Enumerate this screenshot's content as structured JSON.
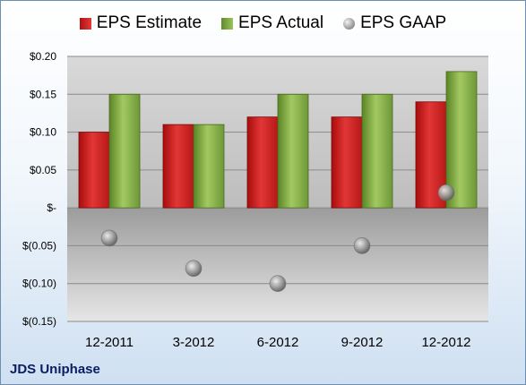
{
  "chart_data": {
    "type": "bar",
    "categories": [
      "12-2011",
      "3-2012",
      "6-2012",
      "9-2012",
      "12-2012"
    ],
    "series": [
      {
        "name": "EPS Estimate",
        "kind": "bar",
        "color": "#d42a2a",
        "values": [
          0.1,
          0.11,
          0.12,
          0.12,
          0.14
        ]
      },
      {
        "name": "EPS Actual",
        "kind": "bar",
        "color": "#86b04a",
        "values": [
          0.15,
          0.11,
          0.15,
          0.15,
          0.18
        ]
      },
      {
        "name": "EPS GAAP",
        "kind": "scatter",
        "color": "#a0a0a0",
        "values": [
          -0.04,
          -0.08,
          -0.1,
          -0.05,
          0.02
        ]
      }
    ],
    "ylim": [
      -0.15,
      0.2
    ],
    "yticks": [
      0.2,
      0.15,
      0.1,
      0.05,
      0,
      -0.05,
      -0.1,
      -0.15
    ],
    "ytick_labels": [
      "$0.20",
      "$0.15",
      "$0.10",
      "$0.05",
      "$-",
      "$(0.05)",
      "$(0.10)",
      "$(0.15)"
    ],
    "grid": true,
    "legend_position": "top"
  },
  "legend": {
    "estimate_label": "EPS Estimate",
    "actual_label": "EPS Actual",
    "gaap_label": "EPS GAAP"
  },
  "footer": {
    "company": "JDS Uniphase"
  }
}
